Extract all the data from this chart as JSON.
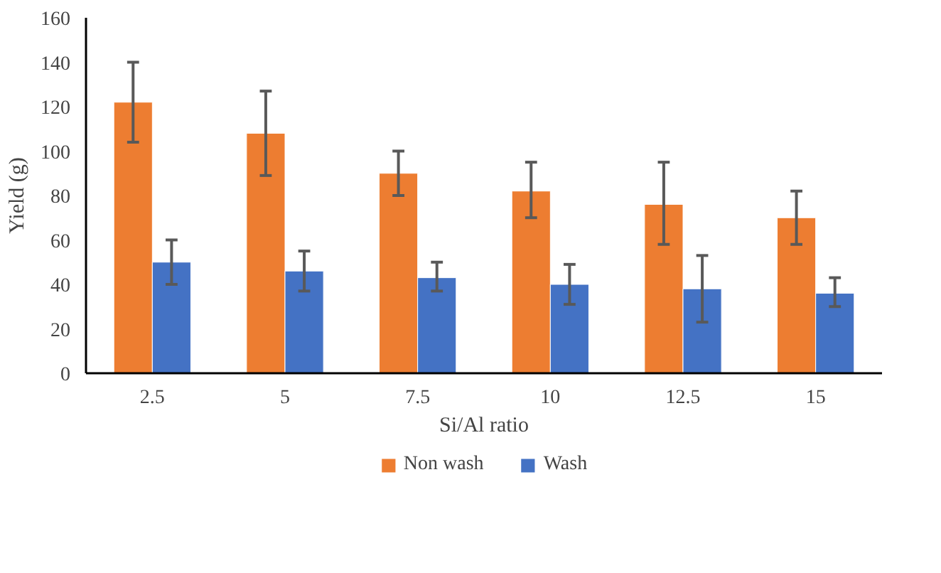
{
  "chart_data": {
    "type": "bar",
    "xlabel": "Si/Al ratio",
    "ylabel": "Yield (g)",
    "categories": [
      "2.5",
      "5",
      "7.5",
      "10",
      "12.5",
      "15"
    ],
    "series": [
      {
        "name": "Non wash",
        "color": "#ed7d31",
        "values": [
          122,
          108,
          90,
          82,
          76,
          70
        ],
        "errors": [
          [
            104,
            140
          ],
          [
            89,
            127
          ],
          [
            80,
            100
          ],
          [
            70,
            95
          ],
          [
            58,
            95
          ],
          [
            58,
            82
          ]
        ]
      },
      {
        "name": "Wash",
        "color": "#4472c4",
        "values": [
          50,
          46,
          43,
          40,
          38,
          36
        ],
        "errors": [
          [
            40,
            60
          ],
          [
            37,
            55
          ],
          [
            37,
            50
          ],
          [
            31,
            49
          ],
          [
            23,
            53
          ],
          [
            30,
            43
          ]
        ]
      }
    ],
    "ylim": [
      0,
      160
    ],
    "yticks": [
      0,
      20,
      40,
      60,
      80,
      100,
      120,
      140,
      160
    ],
    "grid": false,
    "legend": "bottom"
  }
}
